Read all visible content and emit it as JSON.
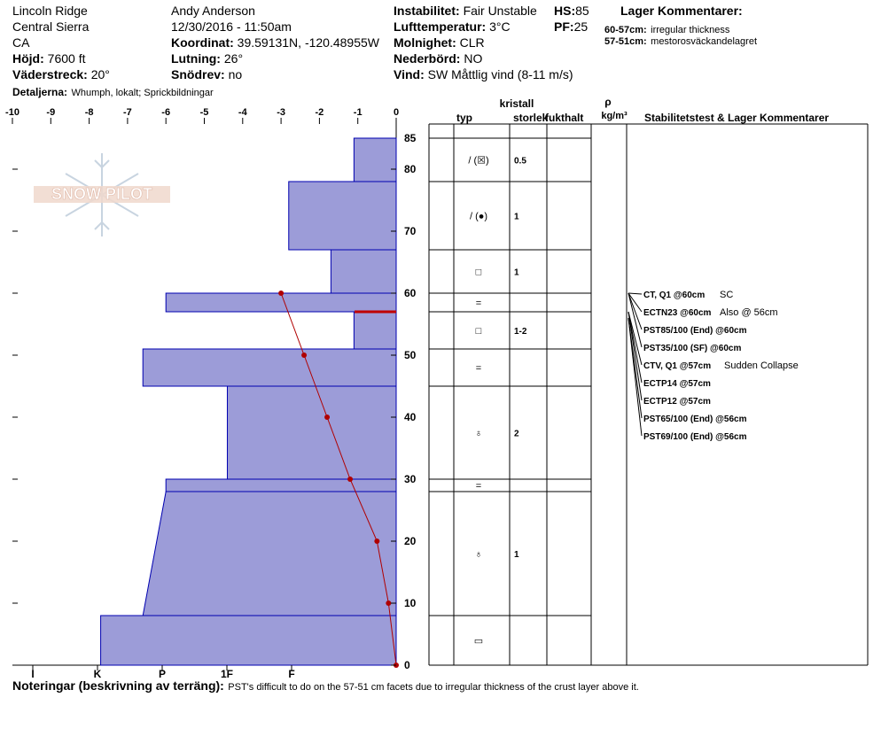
{
  "header": {
    "location": "Lincoln Ridge",
    "range": "Central Sierra",
    "state": "CA",
    "elevation_label": "Höjd:",
    "elevation": "7600 ft",
    "aspect_label": "Väderstreck:",
    "aspect": "20°",
    "details_label": "Detaljerna:",
    "details": "Whumph, lokalt;  Sprickbildningar",
    "observer": "Andy Anderson",
    "datetime": "12/30/2016 - 11:50am",
    "coord_label": "Koordinat:",
    "coord": "39.59131N, -120.48955W",
    "slope_label": "Lutning:",
    "slope": "26°",
    "drift_label": "Snödrev:",
    "drift": "no",
    "instability_label": "Instabilitet:",
    "instability": "Fair Unstable",
    "airtemp_label": "Lufttemperatur:",
    "airtemp": "3°C",
    "sky_label": "Molnighet:",
    "sky": "CLR",
    "precip_label": "Nederbörd:",
    "precip": "NO",
    "wind_label": "Vind:",
    "wind": "SW  Måttlig vind (8-11 m/s)",
    "hs_label": "HS:",
    "hs": "85",
    "pf_label": "PF:",
    "pf": "25",
    "layer_comments_title": "Lager Kommentarer:",
    "layer_comments": [
      {
        "range": "60-57cm:",
        "text": "irregular thickness"
      },
      {
        "range": "57-51cm:",
        "text": "mestorosväckandelagret"
      }
    ]
  },
  "logo_text": "SNOW PILOT",
  "columns": {
    "crystal": "kristall",
    "type": "typ",
    "size": "storlek",
    "moisture": "fukthalt",
    "rho": "ρ",
    "density_unit": "kg/m³",
    "stability": "Stabilitetstest & Lager Kommentarer"
  },
  "notes_label": "Noteringar (beskrivning av terräng):",
  "notes": "PST's difficult to do on the 57-51 cm facets due to irregular thickness of the crust layer above it.",
  "colors": {
    "hardness_fill": "#9c9cd8",
    "hardness_stroke": "#0000b0",
    "temp_line": "#b00000",
    "weak_layer": "#c00000"
  },
  "chart_data": {
    "type": "area",
    "x_top_ticks": [
      "-10",
      "-9",
      "-8",
      "-7",
      "-6",
      "-5",
      "-4",
      "-3",
      "-2",
      "-1",
      "0"
    ],
    "xlim_temp": [
      -10,
      0
    ],
    "hardness_ticks": [
      "I",
      "K",
      "P",
      "1F",
      "F"
    ],
    "y_ticks": [
      "0",
      "10",
      "20",
      "30",
      "40",
      "50",
      "60",
      "70",
      "80"
    ],
    "ylim": [
      0,
      85
    ],
    "ylabel_top": "85",
    "hardness_profile": [
      {
        "top": 85,
        "bottom": 78,
        "hardness": 1.1
      },
      {
        "top": 78,
        "bottom": 67,
        "hardness": 2.8
      },
      {
        "top": 67,
        "bottom": 60,
        "hardness": 1.7
      },
      {
        "top": 60,
        "bottom": 57,
        "hardness": 6.0
      },
      {
        "top": 57,
        "bottom": 51,
        "hardness": 1.1
      },
      {
        "top": 51,
        "bottom": 45,
        "hardness": 6.6
      },
      {
        "top": 45,
        "bottom": 30,
        "hardness": 4.4
      },
      {
        "top": 30,
        "bottom": 28,
        "hardness": 6.0
      },
      {
        "top": 28,
        "bottom": 8,
        "hardness_top": 6.0,
        "hardness_bottom": 6.6
      },
      {
        "top": 8,
        "bottom": 0,
        "hardness": 7.7
      }
    ],
    "weak_layer_depth": 57,
    "temperature_profile": [
      {
        "depth": 60,
        "temp": -3.0
      },
      {
        "depth": 50,
        "temp": -2.4
      },
      {
        "depth": 40,
        "temp": -1.8
      },
      {
        "depth": 30,
        "temp": -1.2
      },
      {
        "depth": 20,
        "temp": -0.5
      },
      {
        "depth": 10,
        "temp": -0.2
      },
      {
        "depth": 0,
        "temp": 0.0
      }
    ],
    "layers": [
      {
        "top": 85,
        "bottom": 78,
        "type": "/ (☒)",
        "size": "0.5"
      },
      {
        "top": 78,
        "bottom": 67,
        "type": "/ (●)",
        "size": "1"
      },
      {
        "top": 67,
        "bottom": 60,
        "type": "□",
        "size": "1"
      },
      {
        "top": 60,
        "bottom": 57,
        "type": "=",
        "size": ""
      },
      {
        "top": 57,
        "bottom": 51,
        "type": "□",
        "size": "1-2"
      },
      {
        "top": 51,
        "bottom": 45,
        "type": "=",
        "size": ""
      },
      {
        "top": 45,
        "bottom": 30,
        "type": "♁",
        "size": "2"
      },
      {
        "top": 30,
        "bottom": 28,
        "type": "=",
        "size": ""
      },
      {
        "top": 28,
        "bottom": 8,
        "type": "♁",
        "size": "1"
      },
      {
        "top": 8,
        "bottom": 0,
        "type": "▭",
        "size": ""
      }
    ],
    "stability_tests": [
      {
        "test": "CT, Q1 @60cm",
        "note": "SC",
        "depth": 60
      },
      {
        "test": "ECTN23 @60cm",
        "note": "Also @ 56cm",
        "depth": 60
      },
      {
        "test": "PST85/100 (End) @60cm",
        "note": "",
        "depth": 60
      },
      {
        "test": "PST35/100 (SF) @60cm",
        "note": "",
        "depth": 60
      },
      {
        "test": "CTV, Q1 @57cm",
        "note": "Sudden Collapse",
        "depth": 57
      },
      {
        "test": "ECTP14 @57cm",
        "note": "",
        "depth": 57
      },
      {
        "test": "ECTP12 @57cm",
        "note": "",
        "depth": 57
      },
      {
        "test": "PST65/100 (End) @56cm",
        "note": "",
        "depth": 56
      },
      {
        "test": "PST69/100 (End) @56cm",
        "note": "",
        "depth": 56
      }
    ]
  }
}
